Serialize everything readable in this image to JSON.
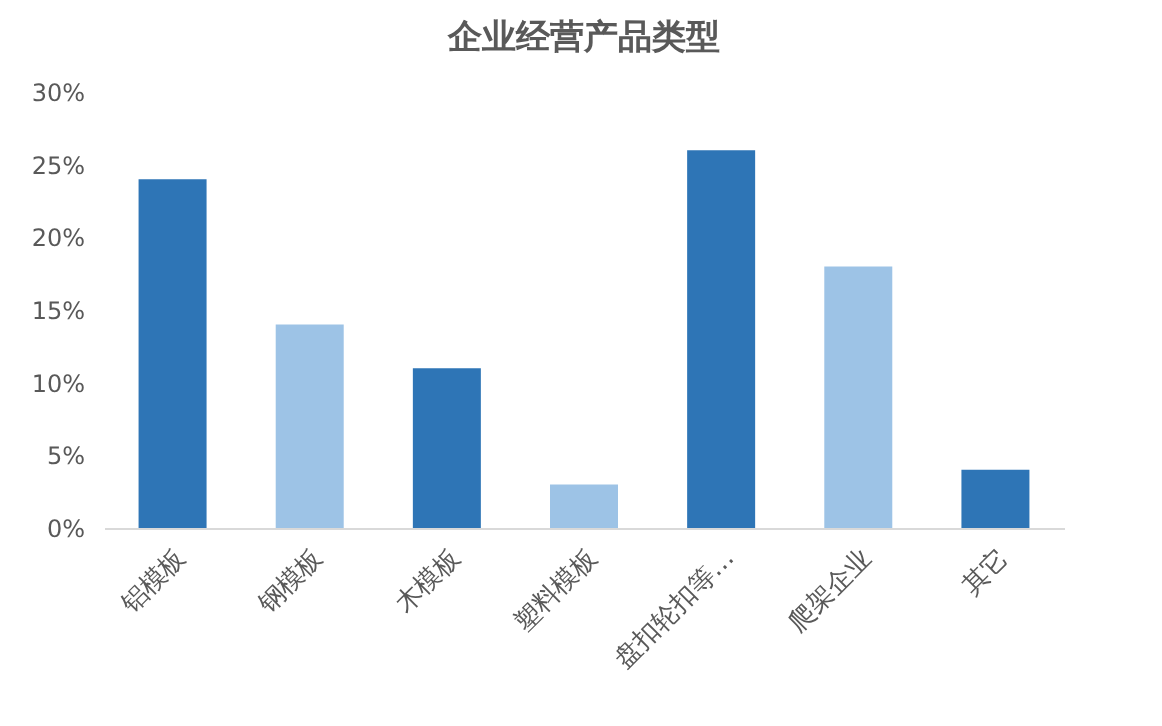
{
  "chart_data": {
    "type": "bar",
    "title": "企业经营产品类型",
    "categories": [
      "铝模板",
      "钢模板",
      "木模板",
      "塑料模板",
      "盘扣轮扣等…",
      "爬架企业",
      "其它"
    ],
    "values": [
      24,
      14,
      11,
      3,
      26,
      18,
      4
    ],
    "colors": [
      "#2e75b6",
      "#9dc3e6",
      "#2e75b6",
      "#9dc3e6",
      "#2e75b6",
      "#9dc3e6",
      "#2e75b6"
    ],
    "ylim": [
      0,
      30
    ],
    "yticks": [
      {
        "value": 0,
        "label": "0%"
      },
      {
        "value": 5,
        "label": "5%"
      },
      {
        "value": 10,
        "label": "10%"
      },
      {
        "value": 15,
        "label": "15%"
      },
      {
        "value": 20,
        "label": "20%"
      },
      {
        "value": 25,
        "label": "25%"
      },
      {
        "value": 30,
        "label": "30%"
      }
    ],
    "grid": false
  }
}
